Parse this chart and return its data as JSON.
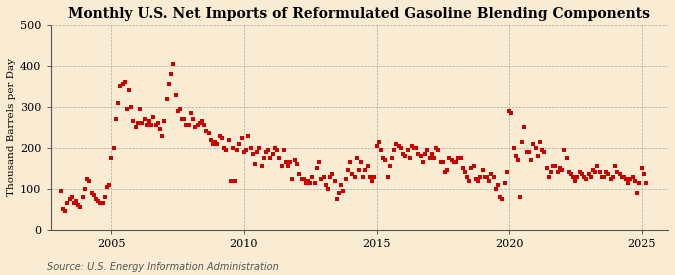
{
  "title": "Monthly U.S. Net Imports of Reformulated Gasoline Blending Components",
  "ylabel": "Thousand Barrels per Day",
  "source": "Source: U.S. Energy Information Administration",
  "background_color": "#faecd2",
  "plot_background_color": "#faecd2",
  "marker_color": "#cc0000",
  "marker": "s",
  "marker_size": 3.2,
  "ylim": [
    0,
    500
  ],
  "yticks": [
    0,
    100,
    200,
    300,
    400,
    500
  ],
  "xlim_start": 2002.7,
  "xlim_end": 2026.0,
  "xticks": [
    2005,
    2010,
    2015,
    2020,
    2025
  ],
  "grid_color": "#aaaaaa",
  "grid_style": "--",
  "title_fontsize": 10,
  "label_fontsize": 7.5,
  "tick_fontsize": 8,
  "source_fontsize": 7,
  "data_x": [
    2003.08,
    2003.17,
    2003.25,
    2003.33,
    2003.42,
    2003.5,
    2003.58,
    2003.67,
    2003.75,
    2003.83,
    2003.92,
    2004.0,
    2004.08,
    2004.17,
    2004.25,
    2004.33,
    2004.42,
    2004.5,
    2004.58,
    2004.67,
    2004.75,
    2004.83,
    2004.92,
    2005.0,
    2005.08,
    2005.17,
    2005.25,
    2005.33,
    2005.42,
    2005.5,
    2005.58,
    2005.67,
    2005.75,
    2005.83,
    2005.92,
    2006.0,
    2006.08,
    2006.17,
    2006.25,
    2006.33,
    2006.42,
    2006.5,
    2006.58,
    2006.67,
    2006.75,
    2006.83,
    2006.92,
    2007.0,
    2007.08,
    2007.17,
    2007.25,
    2007.33,
    2007.42,
    2007.5,
    2007.58,
    2007.67,
    2007.75,
    2007.83,
    2007.92,
    2008.0,
    2008.08,
    2008.17,
    2008.25,
    2008.33,
    2008.42,
    2008.5,
    2008.58,
    2008.67,
    2008.75,
    2008.83,
    2008.92,
    2009.0,
    2009.08,
    2009.17,
    2009.25,
    2009.33,
    2009.42,
    2009.5,
    2009.58,
    2009.67,
    2009.75,
    2009.83,
    2009.92,
    2010.0,
    2010.08,
    2010.17,
    2010.25,
    2010.33,
    2010.42,
    2010.5,
    2010.58,
    2010.67,
    2010.75,
    2010.83,
    2010.92,
    2011.0,
    2011.08,
    2011.17,
    2011.25,
    2011.33,
    2011.42,
    2011.5,
    2011.58,
    2011.67,
    2011.75,
    2011.83,
    2011.92,
    2012.0,
    2012.08,
    2012.17,
    2012.25,
    2012.33,
    2012.42,
    2012.5,
    2012.58,
    2012.67,
    2012.75,
    2012.83,
    2012.92,
    2013.0,
    2013.08,
    2013.17,
    2013.25,
    2013.33,
    2013.42,
    2013.5,
    2013.58,
    2013.67,
    2013.75,
    2013.83,
    2013.92,
    2014.0,
    2014.08,
    2014.17,
    2014.25,
    2014.33,
    2014.42,
    2014.5,
    2014.58,
    2014.67,
    2014.75,
    2014.83,
    2014.92,
    2015.0,
    2015.08,
    2015.17,
    2015.25,
    2015.33,
    2015.42,
    2015.5,
    2015.58,
    2015.67,
    2015.75,
    2015.83,
    2015.92,
    2016.0,
    2016.08,
    2016.17,
    2016.25,
    2016.33,
    2016.42,
    2016.5,
    2016.58,
    2016.67,
    2016.75,
    2016.83,
    2016.92,
    2017.0,
    2017.08,
    2017.17,
    2017.25,
    2017.33,
    2017.42,
    2017.5,
    2017.58,
    2017.67,
    2017.75,
    2017.83,
    2017.92,
    2018.0,
    2018.08,
    2018.17,
    2018.25,
    2018.33,
    2018.42,
    2018.5,
    2018.58,
    2018.67,
    2018.75,
    2018.83,
    2018.92,
    2019.0,
    2019.08,
    2019.17,
    2019.25,
    2019.33,
    2019.42,
    2019.5,
    2019.58,
    2019.67,
    2019.75,
    2019.83,
    2019.92,
    2020.0,
    2020.08,
    2020.17,
    2020.25,
    2020.33,
    2020.42,
    2020.5,
    2020.58,
    2020.67,
    2020.75,
    2020.83,
    2020.92,
    2021.0,
    2021.08,
    2021.17,
    2021.25,
    2021.33,
    2021.42,
    2021.5,
    2021.58,
    2021.67,
    2021.75,
    2021.83,
    2021.92,
    2022.0,
    2022.08,
    2022.17,
    2022.25,
    2022.33,
    2022.42,
    2022.5,
    2022.58,
    2022.67,
    2022.75,
    2022.83,
    2022.92,
    2023.0,
    2023.08,
    2023.17,
    2023.25,
    2023.33,
    2023.42,
    2023.5,
    2023.58,
    2023.67,
    2023.75,
    2023.83,
    2023.92,
    2024.0,
    2024.08,
    2024.17,
    2024.25,
    2024.33,
    2024.42,
    2024.5,
    2024.58,
    2024.67,
    2024.75,
    2024.83,
    2024.92,
    2025.0,
    2025.08,
    2025.17
  ],
  "data_y": [
    95,
    50,
    45,
    65,
    75,
    80,
    65,
    70,
    60,
    55,
    80,
    100,
    125,
    120,
    90,
    85,
    75,
    70,
    65,
    65,
    80,
    105,
    110,
    175,
    200,
    270,
    310,
    350,
    355,
    360,
    295,
    340,
    300,
    265,
    250,
    260,
    295,
    260,
    270,
    255,
    265,
    255,
    275,
    255,
    260,
    245,
    230,
    265,
    320,
    355,
    380,
    405,
    330,
    290,
    295,
    270,
    270,
    255,
    255,
    285,
    270,
    250,
    255,
    260,
    265,
    255,
    240,
    235,
    220,
    210,
    215,
    210,
    230,
    225,
    200,
    195,
    220,
    120,
    200,
    120,
    195,
    210,
    225,
    190,
    195,
    230,
    200,
    185,
    160,
    190,
    200,
    155,
    175,
    190,
    195,
    175,
    185,
    200,
    195,
    175,
    155,
    195,
    165,
    155,
    165,
    125,
    170,
    160,
    135,
    125,
    125,
    115,
    120,
    115,
    130,
    115,
    150,
    165,
    125,
    130,
    110,
    100,
    130,
    135,
    120,
    75,
    90,
    110,
    95,
    125,
    145,
    165,
    135,
    130,
    175,
    145,
    165,
    130,
    145,
    155,
    130,
    120,
    130,
    205,
    215,
    195,
    175,
    170,
    130,
    155,
    175,
    195,
    210,
    205,
    200,
    185,
    180,
    195,
    175,
    205,
    200,
    200,
    185,
    180,
    165,
    185,
    195,
    175,
    185,
    175,
    200,
    195,
    165,
    165,
    140,
    145,
    175,
    170,
    165,
    165,
    175,
    175,
    150,
    140,
    130,
    120,
    150,
    155,
    125,
    120,
    130,
    145,
    130,
    130,
    120,
    135,
    130,
    100,
    110,
    80,
    75,
    115,
    140,
    290,
    285,
    200,
    180,
    170,
    80,
    215,
    250,
    190,
    190,
    170,
    210,
    200,
    180,
    215,
    195,
    190,
    150,
    130,
    140,
    155,
    155,
    140,
    150,
    145,
    195,
    175,
    140,
    135,
    130,
    120,
    130,
    140,
    135,
    130,
    125,
    135,
    130,
    145,
    140,
    155,
    140,
    130,
    130,
    140,
    135,
    125,
    130,
    155,
    140,
    135,
    130,
    130,
    125,
    115,
    125,
    130,
    120,
    90,
    115,
    150,
    135,
    115
  ]
}
